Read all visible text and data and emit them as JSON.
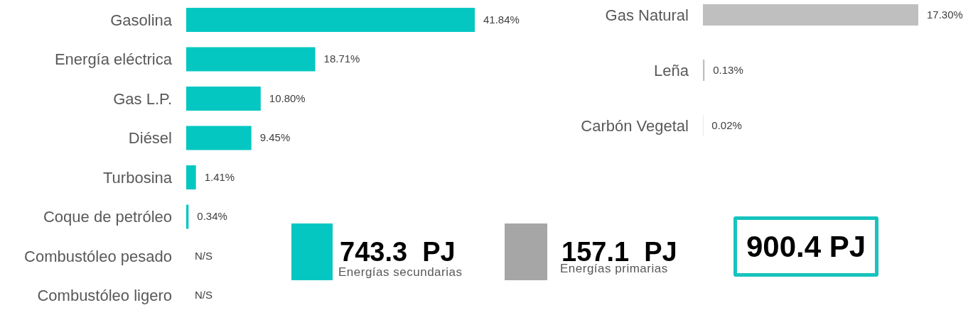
{
  "chart_data": [
    {
      "type": "bar",
      "orientation": "horizontal",
      "categories": [
        "Gasolina",
        "Energía eléctrica",
        "Gas L.P.",
        "Diésel",
        "Turbosina",
        "Coque de petróleo",
        "Combustóleo pesado",
        "Combustóleo ligero"
      ],
      "values": [
        41.84,
        18.71,
        10.8,
        9.45,
        1.41,
        0.34,
        0,
        0
      ],
      "color": "#05c7c2",
      "value_labels": [
        "41.84%",
        "18.71%",
        "10.80%",
        "9.45%",
        "1.41%",
        "0.34%",
        "N/S",
        "N/S"
      ]
    },
    {
      "type": "bar",
      "orientation": "horizontal",
      "categories": [
        "Gas Natural",
        "Leña",
        "Carbón Vegetal"
      ],
      "values": [
        17.3,
        0.13,
        0.02
      ],
      "color": "#bfbfbf",
      "value_labels": [
        "17.30%",
        "0.13%",
        "0.02%"
      ]
    },
    {
      "type": "other",
      "annotations": [
        "743.3  PJ",
        "Energías secundarias",
        "157.1  PJ",
        "Energías primarias",
        "900.4 PJ"
      ]
    }
  ]
}
